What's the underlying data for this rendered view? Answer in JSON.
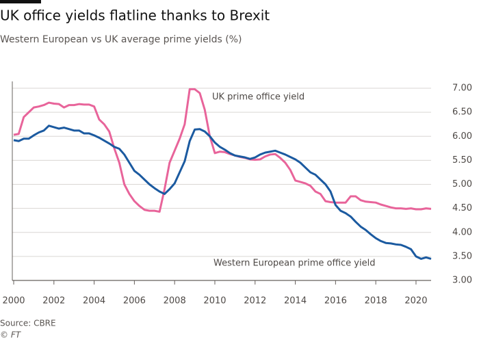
{
  "chart_data": {
    "type": "line",
    "title": "UK office yields flatline thanks to Brexit",
    "subtitle": "Western European vs UK average prime yields (%)",
    "source": "Source: CBRE",
    "credit": "© FT",
    "x": [
      2000,
      2000.25,
      2000.5,
      2000.75,
      2001,
      2001.25,
      2001.5,
      2001.75,
      2002,
      2002.25,
      2002.5,
      2002.75,
      2003,
      2003.25,
      2003.5,
      2003.75,
      2004,
      2004.25,
      2004.5,
      2004.75,
      2005,
      2005.25,
      2005.5,
      2005.75,
      2006,
      2006.25,
      2006.5,
      2006.75,
      2007,
      2007.25,
      2007.5,
      2007.75,
      2008,
      2008.25,
      2008.5,
      2008.75,
      2009,
      2009.25,
      2009.5,
      2009.75,
      2010,
      2010.25,
      2010.5,
      2010.75,
      2011,
      2011.25,
      2011.5,
      2011.75,
      2012,
      2012.25,
      2012.5,
      2012.75,
      2013,
      2013.25,
      2013.5,
      2013.75,
      2014,
      2014.25,
      2014.5,
      2014.75,
      2015,
      2015.25,
      2015.5,
      2015.75,
      2016,
      2016.25,
      2016.5,
      2016.75,
      2017,
      2017.25,
      2017.5,
      2017.75,
      2018,
      2018.25,
      2018.5,
      2018.75,
      2019,
      2019.25,
      2019.5,
      2019.75,
      2020,
      2020.25,
      2020.5,
      2020.75
    ],
    "series": [
      {
        "name": "UK prime office yield",
        "color": "#e8649a",
        "values": [
          6.03,
          6.05,
          6.4,
          6.5,
          6.6,
          6.62,
          6.65,
          6.7,
          6.68,
          6.67,
          6.6,
          6.65,
          6.65,
          6.67,
          6.66,
          6.66,
          6.62,
          6.35,
          6.25,
          6.1,
          5.75,
          5.45,
          5.0,
          4.8,
          4.65,
          4.55,
          4.47,
          4.45,
          4.45,
          4.43,
          4.9,
          5.45,
          5.7,
          5.95,
          6.25,
          6.98,
          6.98,
          6.9,
          6.55,
          6.0,
          5.65,
          5.68,
          5.67,
          5.63,
          5.6,
          5.57,
          5.55,
          5.52,
          5.51,
          5.52,
          5.58,
          5.62,
          5.63,
          5.55,
          5.45,
          5.3,
          5.08,
          5.05,
          5.02,
          4.97,
          4.85,
          4.8,
          4.65,
          4.63,
          4.62,
          4.62,
          4.62,
          4.75,
          4.75,
          4.67,
          4.64,
          4.63,
          4.62,
          4.58,
          4.55,
          4.52,
          4.5,
          4.5,
          4.49,
          4.5,
          4.48,
          4.48,
          4.5,
          4.49
        ]
      },
      {
        "name": "Western European prime office yield",
        "color": "#1b5aa0",
        "values": [
          5.92,
          5.9,
          5.95,
          5.95,
          6.02,
          6.08,
          6.12,
          6.22,
          6.19,
          6.16,
          6.18,
          6.15,
          6.12,
          6.12,
          6.06,
          6.06,
          6.02,
          5.97,
          5.91,
          5.85,
          5.78,
          5.74,
          5.62,
          5.45,
          5.28,
          5.2,
          5.1,
          5.0,
          4.92,
          4.85,
          4.8,
          4.9,
          5.02,
          5.25,
          5.48,
          5.9,
          6.14,
          6.15,
          6.1,
          6.0,
          5.87,
          5.78,
          5.72,
          5.65,
          5.6,
          5.58,
          5.56,
          5.53,
          5.56,
          5.62,
          5.66,
          5.68,
          5.7,
          5.66,
          5.62,
          5.57,
          5.52,
          5.45,
          5.35,
          5.25,
          5.2,
          5.1,
          5.0,
          4.85,
          4.57,
          4.45,
          4.4,
          4.33,
          4.22,
          4.12,
          4.05,
          3.96,
          3.88,
          3.82,
          3.78,
          3.77,
          3.75,
          3.74,
          3.7,
          3.65,
          3.5,
          3.45,
          3.48,
          3.45
        ]
      }
    ],
    "xlim": [
      2000,
      2020.75
    ],
    "xticks": [
      2000,
      2002,
      2004,
      2006,
      2008,
      2010,
      2012,
      2014,
      2016,
      2018,
      2020
    ],
    "ylim": [
      3,
      7
    ],
    "yticks": [
      {
        "value": 3,
        "label": "3.00"
      },
      {
        "value": 3.5,
        "label": "3.50"
      },
      {
        "value": 4,
        "label": "4.00"
      },
      {
        "value": 4.5,
        "label": "4.50"
      },
      {
        "value": 5,
        "label": "5.00"
      },
      {
        "value": 5.5,
        "label": "5.50"
      },
      {
        "value": 6,
        "label": "6.00"
      },
      {
        "value": 6.5,
        "label": "6.50"
      },
      {
        "value": 7,
        "label": "7.00"
      }
    ],
    "grid": true
  }
}
